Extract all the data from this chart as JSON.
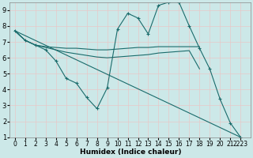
{
  "xlabel": "Humidex (Indice chaleur)",
  "bg_color": "#cce8e8",
  "grid_color": "#e8c8c8",
  "line_color": "#1a6b6b",
  "xlim": [
    -0.5,
    23
  ],
  "ylim": [
    1,
    9.5
  ],
  "yticks": [
    1,
    2,
    3,
    4,
    5,
    6,
    7,
    8,
    9
  ],
  "xtick_labels": [
    "0",
    "1",
    "2",
    "3",
    "4",
    "5",
    "6",
    "7",
    "8",
    "9",
    "10",
    "11",
    "12",
    "13",
    "14",
    "15",
    "16",
    "17",
    "18",
    "19",
    "20",
    "21",
    "2223"
  ],
  "series": [
    {
      "x": [
        0,
        1,
        2,
        3,
        4,
        5,
        6,
        7,
        8,
        9,
        10,
        11,
        12,
        13,
        14,
        15,
        16,
        17,
        18,
        19,
        20,
        21,
        22
      ],
      "y": [
        7.7,
        7.1,
        6.8,
        6.5,
        5.8,
        4.7,
        4.4,
        3.5,
        2.8,
        4.1,
        7.8,
        8.8,
        8.5,
        7.5,
        9.3,
        9.5,
        9.5,
        8.0,
        6.6,
        5.3,
        3.4,
        1.9,
        1.0
      ],
      "marker": "+"
    },
    {
      "x": [
        0,
        1,
        2,
        3,
        4,
        5,
        6,
        7,
        8,
        9,
        10,
        11,
        12,
        13,
        14,
        15,
        16,
        17,
        18
      ],
      "y": [
        7.7,
        7.1,
        6.8,
        6.7,
        6.65,
        6.6,
        6.6,
        6.55,
        6.5,
        6.5,
        6.55,
        6.6,
        6.65,
        6.65,
        6.7,
        6.7,
        6.7,
        6.7,
        6.7
      ],
      "marker": null
    },
    {
      "x": [
        0,
        1,
        2,
        3,
        4,
        5,
        6,
        7,
        8,
        9,
        10,
        11,
        12,
        13,
        14,
        15,
        16,
        17,
        18
      ],
      "y": [
        7.7,
        7.1,
        6.8,
        6.65,
        6.5,
        6.35,
        6.25,
        6.15,
        6.05,
        6.0,
        6.05,
        6.1,
        6.15,
        6.2,
        6.3,
        6.35,
        6.4,
        6.45,
        5.3
      ],
      "marker": null
    },
    {
      "x": [
        0,
        22
      ],
      "y": [
        7.7,
        1.0
      ],
      "marker": null
    }
  ]
}
